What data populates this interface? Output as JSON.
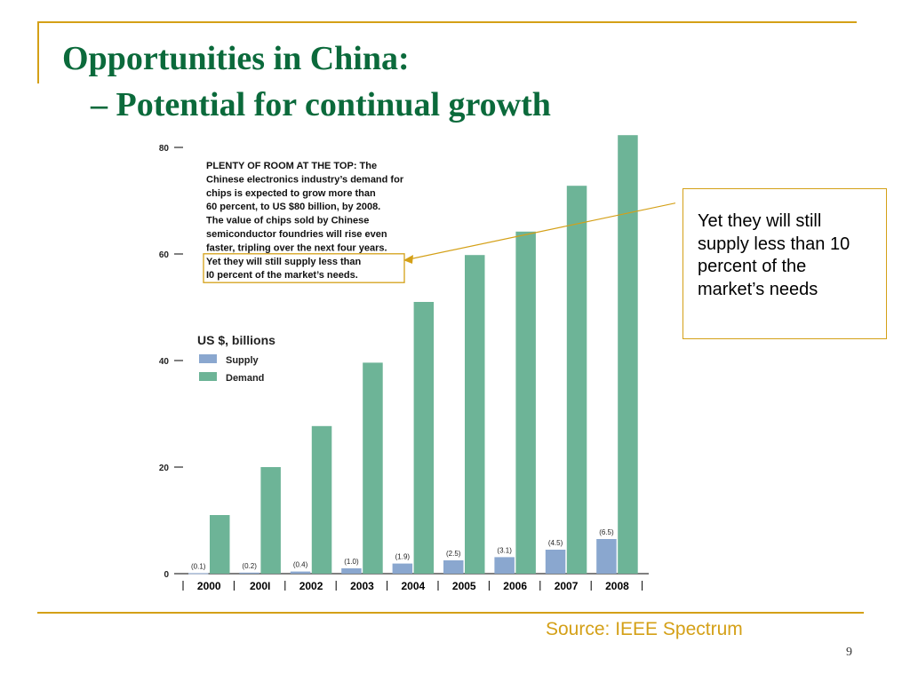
{
  "slide": {
    "title": "Opportunities in China:",
    "subtitle": "–  Potential for continual growth",
    "callout": "Yet they will still supply less than 10 percent of the market’s needs",
    "source": "Source: IEEE Spectrum",
    "page_number": "9"
  },
  "colors": {
    "accent": "#d4a017",
    "title": "#0b6a3b",
    "supply": "#8aa7cf",
    "demand": "#6db497"
  },
  "chart_data": {
    "type": "bar",
    "categories": [
      "2000",
      "200I",
      "2002",
      "2003",
      "2004",
      "2005",
      "2006",
      "2007",
      "2008"
    ],
    "series": [
      {
        "name": "Supply",
        "values": [
          0.1,
          0.2,
          0.4,
          1.0,
          1.9,
          2.5,
          3.1,
          4.5,
          6.5
        ],
        "labels": [
          "(0.1)",
          "(0.2)",
          "(0.4)",
          "(1.0)",
          "(1.9)",
          "(2.5)",
          "(3.1)",
          "(4.5)",
          "(6.5)"
        ]
      },
      {
        "name": "Demand",
        "values": [
          11,
          20,
          27.7,
          39.6,
          51,
          59.8,
          64.2,
          72.8,
          82.3
        ]
      }
    ],
    "ylim": [
      0,
      80
    ],
    "yticks": [
      0,
      20,
      40,
      60,
      80
    ],
    "legend_title": "US $, billions",
    "legend_position": "top-left",
    "annotation": [
      "PLENTY OF ROOM AT THE TOP: The",
      "Chinese electronics industry’s demand for",
      "chips is expected to grow more than",
      "60 percent, to US $80 billion, by 2008.",
      "The value of chips sold by Chinese",
      "semiconductor foundries will rise even",
      "faster, tripling over the next four years.",
      "Yet they will still supply less than",
      "I0 percent of the market’s needs."
    ],
    "highlighted_lines": [
      7,
      8
    ]
  }
}
